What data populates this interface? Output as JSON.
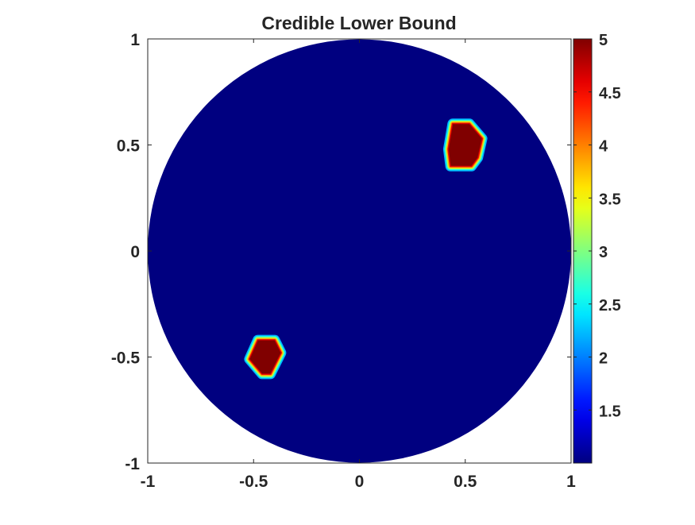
{
  "chart_data": {
    "type": "heatmap",
    "title": "Credible Lower Bound",
    "xlabel": "",
    "ylabel": "",
    "xlim": [
      -1,
      1
    ],
    "ylim": [
      -1,
      1
    ],
    "xticks": [
      "-1",
      "-0.5",
      "0",
      "0.5",
      "1"
    ],
    "yticks": [
      "1",
      "0.5",
      "0",
      "-0.5",
      "-1"
    ],
    "grid": false,
    "colormap": "jet",
    "domain": {
      "shape": "disk",
      "center": [
        0,
        0
      ],
      "radius": 1
    },
    "background_value": 1.0,
    "colorbar": {
      "range": [
        1.0,
        5.0
      ],
      "ticks": [
        "5",
        "4.5",
        "4",
        "3.5",
        "3",
        "2.5",
        "2",
        "1.5"
      ],
      "placement": "right"
    },
    "regions": [
      {
        "value": 5.0,
        "polygon": [
          [
            0.44,
            0.6
          ],
          [
            0.52,
            0.6
          ],
          [
            0.58,
            0.53
          ],
          [
            0.56,
            0.44
          ],
          [
            0.53,
            0.4
          ],
          [
            0.43,
            0.4
          ],
          [
            0.42,
            0.48
          ]
        ]
      },
      {
        "value": 5.0,
        "polygon": [
          [
            -0.48,
            -0.42
          ],
          [
            -0.4,
            -0.42
          ],
          [
            -0.37,
            -0.48
          ],
          [
            -0.42,
            -0.58
          ],
          [
            -0.46,
            -0.58
          ],
          [
            -0.52,
            -0.51
          ]
        ]
      }
    ],
    "colors": {
      "background": "#00007f",
      "peak": "#7f0000",
      "axis": "#262626"
    }
  }
}
